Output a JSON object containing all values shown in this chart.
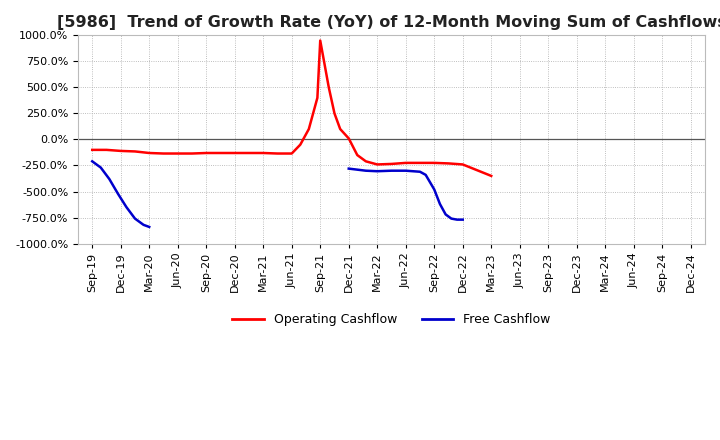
{
  "title": "[5986]  Trend of Growth Rate (YoY) of 12-Month Moving Sum of Cashflows",
  "ylim": [
    -1000,
    1000
  ],
  "yticks": [
    -1000,
    -750,
    -500,
    -250,
    0,
    250,
    500,
    750,
    1000
  ],
  "x_labels": [
    "Sep-19",
    "Dec-19",
    "Mar-20",
    "Jun-20",
    "Sep-20",
    "Dec-20",
    "Mar-21",
    "Jun-21",
    "Sep-21",
    "Dec-21",
    "Mar-22",
    "Jun-22",
    "Sep-22",
    "Dec-22",
    "Mar-23",
    "Jun-23",
    "Sep-23",
    "Dec-23",
    "Mar-24",
    "Jun-24",
    "Sep-24",
    "Dec-24"
  ],
  "op_x": [
    0,
    0.5,
    1,
    1.5,
    2,
    2.5,
    3,
    3.5,
    4,
    4.5,
    5,
    5.5,
    6,
    6.5,
    7,
    7.3,
    7.6,
    7.9,
    8,
    8.1,
    8.3,
    8.5,
    8.7,
    9,
    9.3,
    9.6,
    10,
    10.5,
    11,
    11.5,
    12,
    12.5,
    13,
    14
  ],
  "op_y": [
    -100,
    -100,
    -110,
    -115,
    -130,
    -135,
    -135,
    -135,
    -130,
    -130,
    -130,
    -130,
    -130,
    -135,
    -135,
    -50,
    100,
    400,
    950,
    800,
    500,
    250,
    100,
    10,
    -150,
    -210,
    -240,
    -235,
    -225,
    -225,
    -225,
    -230,
    -240,
    -350
  ],
  "fc_x1": [
    0,
    0.3,
    0.6,
    0.9,
    1.2,
    1.5,
    1.8,
    2.0
  ],
  "fc_y1": [
    -210,
    -270,
    -380,
    -520,
    -650,
    -760,
    -820,
    -840
  ],
  "fc_x2": [
    9,
    9.3,
    9.6,
    10,
    10.5,
    11,
    11.5,
    11.7,
    12,
    12.2,
    12.4,
    12.6,
    12.8,
    13.0
  ],
  "fc_y2": [
    -280,
    -290,
    -300,
    -305,
    -300,
    -300,
    -310,
    -340,
    -480,
    -620,
    -720,
    -760,
    -770,
    -770
  ],
  "op_color": "#ff0000",
  "fc_color": "#0000cc",
  "op_label": "Operating Cashflow",
  "fc_label": "Free Cashflow",
  "background_color": "#ffffff",
  "grid_color": "#aaaaaa",
  "zero_line_color": "#555555",
  "title_fontsize": 11.5,
  "tick_fontsize": 8,
  "legend_fontsize": 9
}
